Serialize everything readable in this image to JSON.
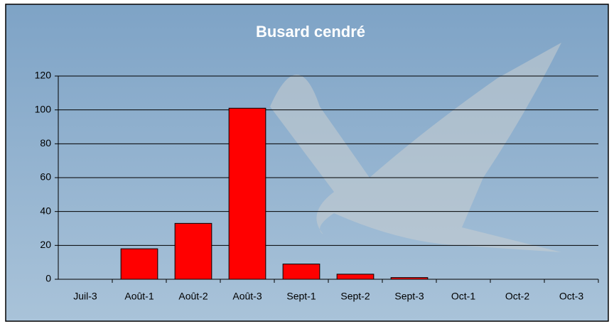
{
  "chart_data": {
    "type": "bar",
    "title": "Busard cendré",
    "categories": [
      "Juil-3",
      "Août-1",
      "Août-2",
      "Août-3",
      "Sept-1",
      "Sept-2",
      "Sept-3",
      "Oct-1",
      "Oct-2",
      "Oct-3"
    ],
    "values": [
      0,
      18,
      33,
      101,
      9,
      3,
      1,
      0,
      0,
      0
    ],
    "color": "#ff0000",
    "ylim": [
      0,
      120
    ],
    "yticks": [
      0,
      20,
      40,
      60,
      80,
      100,
      120
    ],
    "grid": true
  }
}
